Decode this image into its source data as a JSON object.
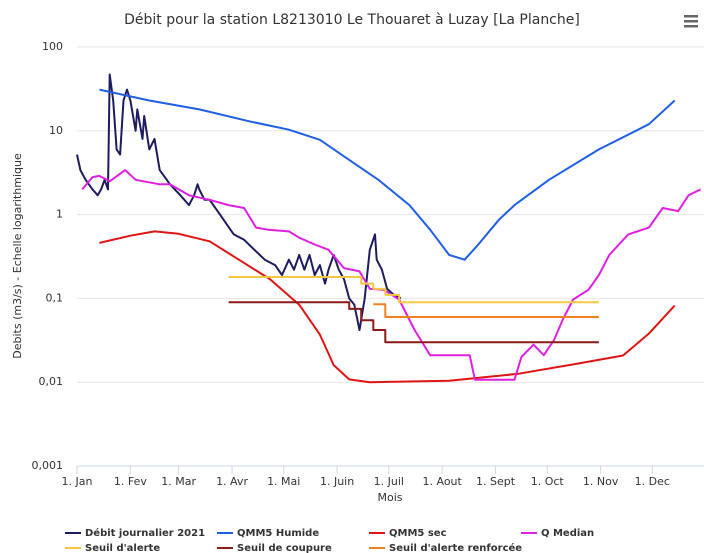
{
  "chart_data": {
    "type": "line",
    "title": "Débit pour la station L8213010 Le Thouaret à Luzay [La Planche]",
    "x_label": "Mois",
    "y_label": "Debits (m3/s) - Echelle logarithmique",
    "log_scale": true,
    "grid": true,
    "legend": "bottom",
    "xlim": [
      0,
      364
    ],
    "xticks": [
      {
        "value": 0,
        "label": "1. Jan"
      },
      {
        "value": 31,
        "label": "1. Fev"
      },
      {
        "value": 59,
        "label": "1. Mar"
      },
      {
        "value": 90,
        "label": "1. Avr"
      },
      {
        "value": 120,
        "label": "1. Mai"
      },
      {
        "value": 151,
        "label": "1. Juin"
      },
      {
        "value": 181,
        "label": "1. Juil"
      },
      {
        "value": 212,
        "label": "1. Aout"
      },
      {
        "value": 243,
        "label": "1. Sept"
      },
      {
        "value": 273,
        "label": "1. Oct"
      },
      {
        "value": 304,
        "label": "1. Nov"
      },
      {
        "value": 334,
        "label": "1. Dec"
      }
    ],
    "ylim": [
      0.001,
      100
    ],
    "yticks": [
      100,
      10,
      1,
      {
        "value": 0.1,
        "label": "0,1"
      },
      {
        "value": 0.01,
        "label": "0,01"
      },
      {
        "value": 0.001,
        "label": "0,001"
      }
    ],
    "series": [
      {
        "name": "Débit journalier 2021",
        "color": "#1c1c5e",
        "x": [
          0,
          2,
          5,
          9,
          12,
          14,
          16,
          18,
          19,
          21,
          23,
          25,
          27,
          29,
          31,
          34,
          35,
          38,
          39,
          42,
          45,
          48,
          54,
          60,
          65,
          68,
          70,
          71,
          74,
          77,
          83,
          87,
          91,
          97,
          103,
          109,
          115,
          119,
          123,
          126,
          129,
          132,
          135,
          138,
          141,
          144,
          146,
          149,
          152,
          155,
          158,
          161,
          164,
          167,
          170,
          173,
          174,
          177,
          180,
          184,
          188
        ],
        "values": [
          5.2,
          3.4,
          2.6,
          2.0,
          1.7,
          2.0,
          2.6,
          2.0,
          47,
          23,
          6,
          5.2,
          23,
          31,
          23,
          10,
          18,
          8,
          15,
          6,
          8,
          3.4,
          2.3,
          1.7,
          1.3,
          1.7,
          2.3,
          2.0,
          1.5,
          1.5,
          1.0,
          0.76,
          0.58,
          0.5,
          0.38,
          0.29,
          0.25,
          0.19,
          0.29,
          0.22,
          0.33,
          0.22,
          0.33,
          0.19,
          0.25,
          0.15,
          0.22,
          0.33,
          0.22,
          0.17,
          0.1,
          0.084,
          0.042,
          0.1,
          0.38,
          0.58,
          0.29,
          0.22,
          0.13,
          0.11,
          0.1
        ]
      },
      {
        "name": "QMM5 Humide",
        "color": "#1f5fe6",
        "x": [
          13,
          42,
          71,
          100,
          123,
          141,
          158,
          175,
          193,
          205,
          216,
          225,
          233,
          245,
          254,
          274,
          303,
          332,
          347
        ],
        "values": [
          31,
          23,
          18,
          13,
          10.3,
          7.8,
          4.5,
          2.6,
          1.3,
          0.66,
          0.33,
          0.29,
          0.44,
          0.87,
          1.3,
          2.6,
          6,
          12,
          23
        ]
      },
      {
        "name": "QMM5 sec",
        "color": "#e01414",
        "x": [
          13,
          31,
          45,
          59,
          77,
          94,
          112,
          129,
          141,
          149,
          158,
          170,
          216,
          256,
          291,
          317,
          332,
          347
        ],
        "values": [
          0.46,
          0.56,
          0.63,
          0.59,
          0.48,
          0.29,
          0.17,
          0.084,
          0.037,
          0.016,
          0.0108,
          0.01,
          0.0104,
          0.0126,
          0.0167,
          0.0208,
          0.038,
          0.082
        ]
      },
      {
        "name": "Q Median",
        "color": "#e020e0",
        "x": [
          3,
          9,
          13,
          19,
          28,
          34,
          48,
          54,
          65,
          77,
          88,
          97,
          104,
          111,
          123,
          129,
          138,
          146,
          155,
          164,
          170,
          178,
          187,
          196,
          205,
          228,
          231,
          254,
          258,
          265,
          271,
          277,
          282,
          288,
          297,
          303,
          309,
          320,
          332,
          340,
          349,
          355,
          362
        ],
        "values": [
          2.0,
          2.8,
          2.9,
          2.5,
          3.4,
          2.6,
          2.3,
          2.3,
          1.7,
          1.5,
          1.3,
          1.2,
          0.7,
          0.66,
          0.63,
          0.53,
          0.44,
          0.38,
          0.23,
          0.21,
          0.13,
          0.127,
          0.097,
          0.042,
          0.021,
          0.021,
          0.0107,
          0.0107,
          0.02,
          0.028,
          0.021,
          0.032,
          0.056,
          0.097,
          0.127,
          0.19,
          0.33,
          0.58,
          0.7,
          1.2,
          1.1,
          1.7,
          2.0
        ]
      },
      {
        "name": "Seuil d'alerte",
        "color": "#f5c842",
        "x": [
          88,
          165,
          165,
          172,
          172,
          179,
          179,
          187,
          187,
          303
        ],
        "values": [
          0.18,
          0.18,
          0.15,
          0.15,
          0.13,
          0.13,
          0.11,
          0.11,
          0.09,
          0.09
        ]
      },
      {
        "name": "Seuil de coupure",
        "color": "#8b1a1a",
        "x": [
          88,
          158,
          158,
          165,
          165,
          172,
          172,
          179,
          179,
          303
        ],
        "values": [
          0.09,
          0.09,
          0.075,
          0.075,
          0.055,
          0.055,
          0.042,
          0.042,
          0.03,
          0.03
        ]
      },
      {
        "name": "Seuil d'alerte renforcée",
        "color": "#f08020",
        "x": [
          172,
          179,
          179,
          303
        ],
        "values": [
          0.085,
          0.085,
          0.06,
          0.06
        ]
      }
    ]
  }
}
